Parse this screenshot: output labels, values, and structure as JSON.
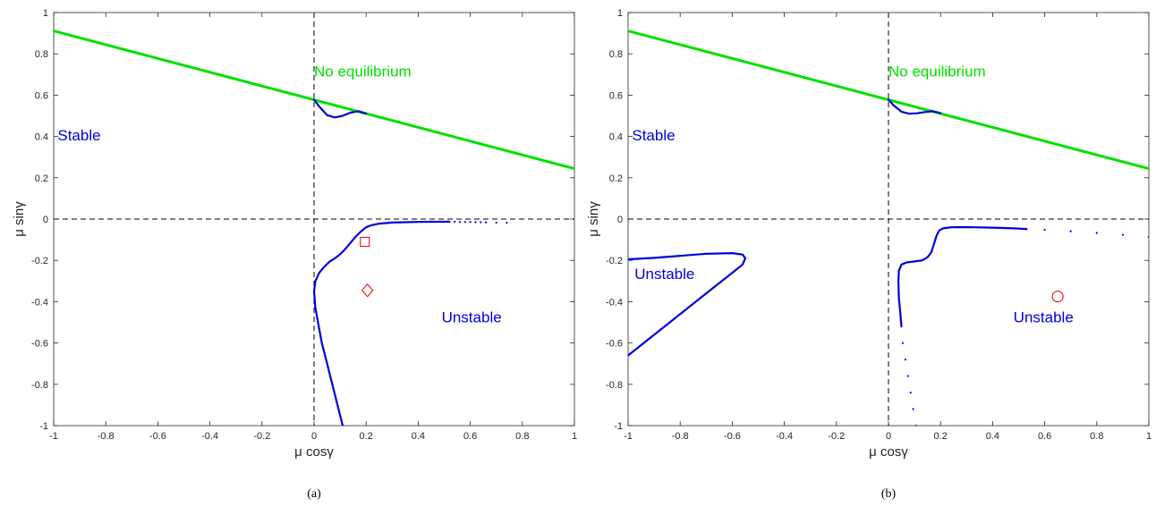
{
  "chart_data": [
    {
      "type": "line",
      "caption": "(a)",
      "xlabel": "μ cosγ",
      "ylabel": "μ sinγ",
      "xlim": [
        -1,
        1
      ],
      "ylim": [
        -1,
        1
      ],
      "xticks": [
        -1,
        -0.8,
        -0.6,
        -0.4,
        -0.2,
        0,
        0.2,
        0.4,
        0.6,
        0.8,
        1
      ],
      "yticks": [
        -1,
        -0.8,
        -0.6,
        -0.4,
        -0.2,
        0,
        0.2,
        0.4,
        0.6,
        0.8,
        1
      ],
      "grid": false,
      "reference_lines": {
        "x": 0,
        "y": 0,
        "style": "dashed"
      },
      "colors": {
        "boundary": "#00e000",
        "stability": "#0000dd",
        "markers": "#dd0000"
      },
      "series": [
        {
          "role": "equilibrium-boundary",
          "x": [
            -1,
            1
          ],
          "y": [
            0.911,
            0.244
          ]
        },
        {
          "role": "stability-boundary-upper",
          "x": [
            0,
            0.02,
            0.05,
            0.08,
            0.11,
            0.14,
            0.17,
            0.2
          ],
          "y": [
            0.578,
            0.545,
            0.503,
            0.492,
            0.5,
            0.515,
            0.522,
            0.511
          ]
        },
        {
          "role": "stability-boundary-lower",
          "x": [
            0.11,
            0.09,
            0.07,
            0.05,
            0.03,
            0.015,
            0.005,
            0,
            0.005,
            0.02,
            0.04,
            0.06,
            0.08,
            0.1,
            0.12,
            0.14,
            0.16,
            0.18,
            0.2,
            0.22,
            0.25,
            0.3,
            0.35,
            0.4,
            0.45,
            0.5,
            0.52
          ],
          "y": [
            -1,
            -0.9,
            -0.8,
            -0.7,
            -0.6,
            -0.5,
            -0.43,
            -0.35,
            -0.3,
            -0.26,
            -0.23,
            -0.205,
            -0.19,
            -0.17,
            -0.145,
            -0.115,
            -0.085,
            -0.06,
            -0.04,
            -0.03,
            -0.022,
            -0.017,
            -0.015,
            -0.014,
            -0.013,
            -0.013,
            -0.013
          ]
        },
        {
          "role": "stability-boundary-dotted",
          "x": [
            0.52,
            0.54,
            0.56,
            0.58,
            0.6,
            0.62,
            0.64,
            0.66,
            0.7,
            0.74
          ],
          "y": [
            -0.013,
            -0.013,
            -0.014,
            -0.014,
            -0.014,
            -0.015,
            -0.015,
            -0.016,
            -0.017,
            -0.018
          ],
          "style": "dotted"
        }
      ],
      "markers": [
        {
          "shape": "square",
          "x": 0.195,
          "y": -0.11
        },
        {
          "shape": "diamond",
          "x": 0.205,
          "y": -0.345
        }
      ],
      "annotations": [
        {
          "text": "No equilibrium",
          "x": 0.0,
          "y": 0.69,
          "color": "#00e000"
        },
        {
          "text": "Stable",
          "x": -0.985,
          "y": 0.38,
          "color": "#0000dd"
        },
        {
          "text": "Unstable",
          "x": 0.49,
          "y": -0.5,
          "color": "#0000dd"
        }
      ]
    },
    {
      "type": "line",
      "caption": "(b)",
      "xlabel": "μ cosγ",
      "ylabel": "μ sinγ",
      "xlim": [
        -1,
        1
      ],
      "ylim": [
        -1,
        1
      ],
      "xticks": [
        -1,
        -0.8,
        -0.6,
        -0.4,
        -0.2,
        0,
        0.2,
        0.4,
        0.6,
        0.8,
        1
      ],
      "yticks": [
        -1,
        -0.8,
        -0.6,
        -0.4,
        -0.2,
        0,
        0.2,
        0.4,
        0.6,
        0.8,
        1
      ],
      "grid": false,
      "reference_lines": {
        "x": 0,
        "y": 0,
        "style": "dashed"
      },
      "colors": {
        "boundary": "#00e000",
        "stability": "#0000dd",
        "markers": "#dd0000"
      },
      "series": [
        {
          "role": "equilibrium-boundary",
          "x": [
            -1,
            1
          ],
          "y": [
            0.911,
            0.244
          ]
        },
        {
          "role": "stability-boundary-upper",
          "x": [
            0,
            0.02,
            0.05,
            0.08,
            0.11,
            0.14,
            0.17,
            0.2
          ],
          "y": [
            0.578,
            0.55,
            0.52,
            0.51,
            0.512,
            0.518,
            0.522,
            0.513
          ]
        },
        {
          "role": "unstable-tongue",
          "x": [
            -1,
            -0.92,
            -0.84,
            -0.76,
            -0.68,
            -0.6,
            -0.56,
            -0.55,
            -0.56,
            -0.6,
            -0.7,
            -0.8,
            -0.9,
            -1
          ],
          "y": [
            -0.66,
            -0.58,
            -0.5,
            -0.42,
            -0.34,
            -0.26,
            -0.22,
            -0.19,
            -0.172,
            -0.165,
            -0.168,
            -0.178,
            -0.188,
            -0.195
          ]
        },
        {
          "role": "stability-boundary-lower",
          "x": [
            0.05,
            0.045,
            0.04,
            0.038,
            0.04,
            0.05,
            0.07,
            0.1,
            0.13,
            0.15,
            0.165,
            0.175,
            0.185,
            0.195,
            0.21,
            0.24,
            0.28,
            0.33,
            0.38,
            0.43,
            0.48,
            0.53
          ],
          "y": [
            -0.52,
            -0.45,
            -0.38,
            -0.3,
            -0.25,
            -0.22,
            -0.21,
            -0.205,
            -0.2,
            -0.185,
            -0.16,
            -0.12,
            -0.08,
            -0.055,
            -0.045,
            -0.04,
            -0.039,
            -0.04,
            -0.041,
            -0.043,
            -0.045,
            -0.048
          ]
        },
        {
          "role": "stability-boundary-dotted-right",
          "x": [
            0.53,
            0.6,
            0.7,
            0.8,
            0.9,
            1
          ],
          "y": [
            -0.048,
            -0.052,
            -0.059,
            -0.067,
            -0.076,
            -0.087
          ],
          "style": "dotted"
        },
        {
          "role": "stability-boundary-dotted-down",
          "x": [
            0.055,
            0.065,
            0.075,
            0.085,
            0.095,
            0.105
          ],
          "y": [
            -0.6,
            -0.68,
            -0.76,
            -0.84,
            -0.92,
            -1
          ],
          "style": "dotted"
        }
      ],
      "markers": [
        {
          "shape": "circle",
          "x": 0.65,
          "y": -0.375
        }
      ],
      "annotations": [
        {
          "text": "No equilibrium",
          "x": 0.0,
          "y": 0.69,
          "color": "#00e000"
        },
        {
          "text": "Stable",
          "x": -0.985,
          "y": 0.38,
          "color": "#0000dd"
        },
        {
          "text": "Unstable",
          "x": -0.975,
          "y": -0.29,
          "color": "#0000dd"
        },
        {
          "text": "Unstable",
          "x": 0.48,
          "y": -0.5,
          "color": "#0000dd"
        }
      ]
    }
  ]
}
